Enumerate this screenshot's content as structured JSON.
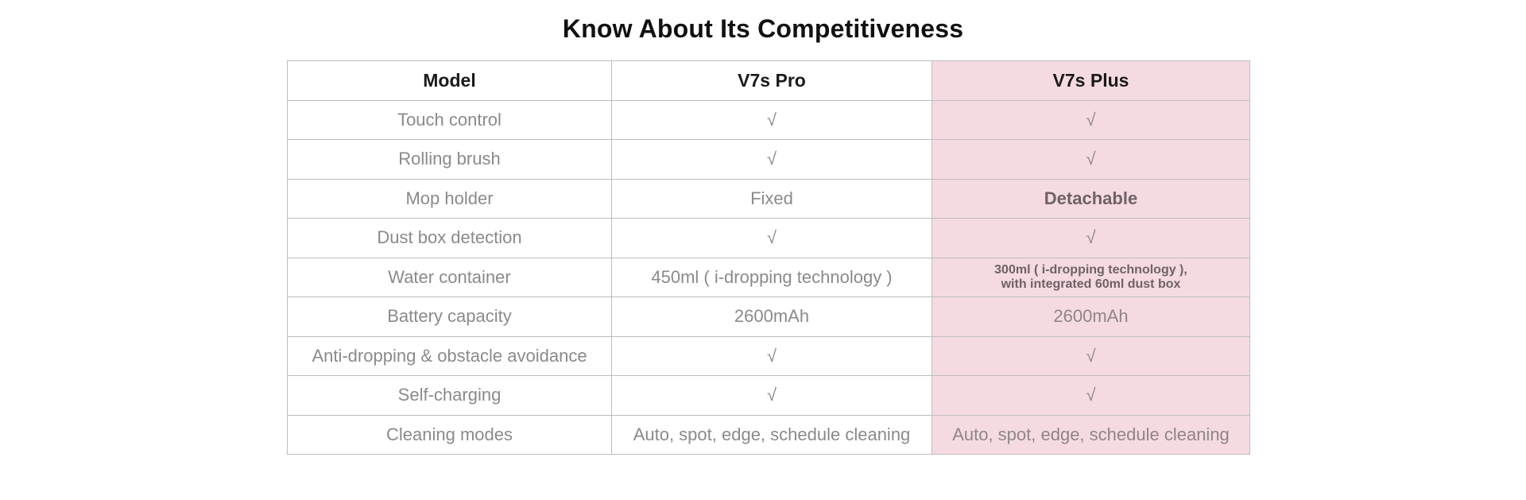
{
  "title": "Know About Its Competitiveness",
  "table": {
    "headers": [
      "Model",
      "V7s Pro",
      "V7s Plus"
    ],
    "rows": [
      {
        "feature": "Touch control",
        "pro": "√",
        "plus": "√"
      },
      {
        "feature": "Rolling brush",
        "pro": "√",
        "plus": "√"
      },
      {
        "feature": "Mop holder",
        "pro": "Fixed",
        "plus": "Detachable"
      },
      {
        "feature": "Dust box detection",
        "pro": "√",
        "plus": "√"
      },
      {
        "feature": "Water container",
        "pro": "450ml ( i-dropping technology )",
        "plus_line1": "300ml ( i-dropping technology ),",
        "plus_line2": "with integrated 60ml dust box"
      },
      {
        "feature": "Battery capacity",
        "pro": "2600mAh",
        "plus": "2600mAh"
      },
      {
        "feature": "Anti-dropping & obstacle avoidance",
        "pro": "√",
        "plus": "√"
      },
      {
        "feature": "Self-charging",
        "pro": "√",
        "plus": "√"
      },
      {
        "feature": "Cleaning modes",
        "pro": "Auto, spot, edge, schedule cleaning",
        "plus": "Auto, spot, edge, schedule cleaning"
      }
    ]
  },
  "colors": {
    "highlight": "#f5dbe1",
    "border": "#bdbdbd",
    "text": "#8a8a8a",
    "header_text": "#1a1a1a"
  }
}
